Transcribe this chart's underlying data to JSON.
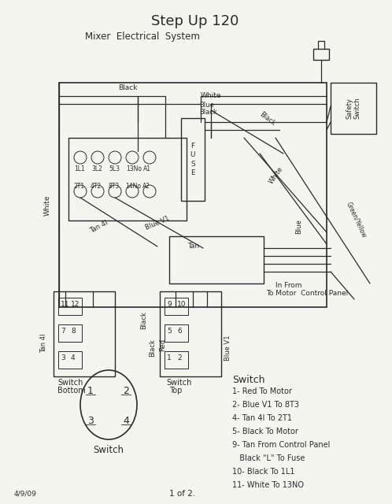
{
  "title": "Step Up 120",
  "subtitle": "Mixer Electrical System",
  "bg_color": "#f5f5f0",
  "line_color": "#2a2a2a",
  "figsize": [
    4.98,
    6.4
  ],
  "dpi": 100,
  "switch_legend": [
    "1- Red To Motor",
    "2- Blue V1 To 8T3",
    "4- Tan 4I To 2T1",
    "5- Black To Motor",
    "9- Tan From Control Panel",
    "   Black \"L\" To Fuse",
    "10- Black To 1L1",
    "11- White To 13NO"
  ],
  "date_text": "4/9/09",
  "page_text": "1 of 2."
}
